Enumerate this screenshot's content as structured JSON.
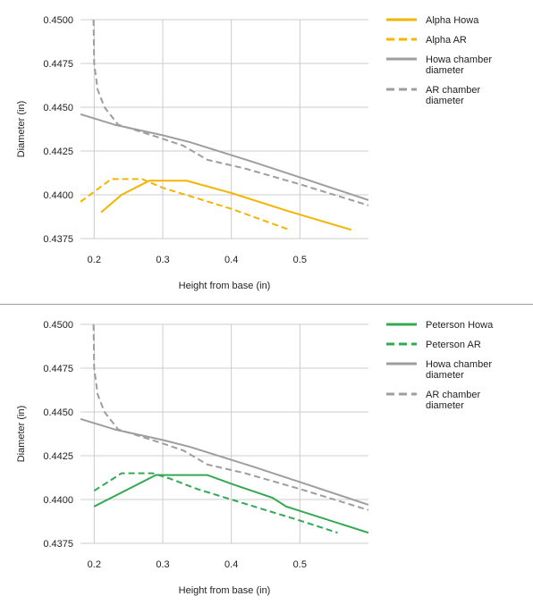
{
  "chart_data": [
    {
      "type": "line",
      "title": "",
      "xlabel": "Height from base (in)",
      "ylabel": "Diameter (in)",
      "xlim": [
        0.18,
        0.6
      ],
      "ylim": [
        0.4375,
        0.45
      ],
      "xticks": [
        "0.2",
        "0.3",
        "0.4",
        "0.5"
      ],
      "yticks": [
        "0.4375",
        "0.4400",
        "0.4425",
        "0.4450",
        "0.4475",
        "0.4500"
      ],
      "grid": true,
      "legend_position": "right",
      "series": [
        {
          "name": "Alpha Howa",
          "color": "#f4b400",
          "dash": "solid",
          "points": [
            [
              0.21,
              0.439
            ],
            [
              0.24,
              0.44
            ],
            [
              0.28,
              0.4408
            ],
            [
              0.335,
              0.4408
            ],
            [
              0.4,
              0.4401
            ],
            [
              0.48,
              0.4391
            ],
            [
              0.575,
              0.438
            ]
          ]
        },
        {
          "name": "Alpha AR",
          "color": "#f4b400",
          "dash": "dashed",
          "points": [
            [
              0.18,
              0.4396
            ],
            [
              0.225,
              0.4409
            ],
            [
              0.27,
              0.4409
            ],
            [
              0.3,
              0.4404
            ],
            [
              0.35,
              0.4398
            ],
            [
              0.4,
              0.4392
            ],
            [
              0.485,
              0.438
            ]
          ]
        },
        {
          "name": "Howa chamber diameter",
          "color": "#9e9e9e",
          "dash": "solid",
          "points": [
            [
              0.18,
              0.4446
            ],
            [
              0.23,
              0.444
            ],
            [
              0.3,
              0.4434
            ],
            [
              0.34,
              0.443
            ],
            [
              0.43,
              0.4419
            ],
            [
              0.5,
              0.441
            ],
            [
              0.6,
              0.4397
            ]
          ]
        },
        {
          "name": "AR chamber diameter",
          "color": "#9e9e9e",
          "dash": "dashed",
          "points": [
            [
              0.199,
              0.45
            ],
            [
              0.2,
              0.4475
            ],
            [
              0.205,
              0.446
            ],
            [
              0.215,
              0.445
            ],
            [
              0.235,
              0.444
            ],
            [
              0.26,
              0.4437
            ],
            [
              0.3,
              0.4432
            ],
            [
              0.33,
              0.4428
            ],
            [
              0.365,
              0.442
            ],
            [
              0.42,
              0.4415
            ],
            [
              0.5,
              0.4406
            ],
            [
              0.6,
              0.4394
            ]
          ]
        }
      ]
    },
    {
      "type": "line",
      "title": "",
      "xlabel": "Height from base (in)",
      "ylabel": "Diameter (in)",
      "xlim": [
        0.18,
        0.6
      ],
      "ylim": [
        0.4375,
        0.45
      ],
      "xticks": [
        "0.2",
        "0.3",
        "0.4",
        "0.5"
      ],
      "yticks": [
        "0.4375",
        "0.4400",
        "0.4425",
        "0.4450",
        "0.4475",
        "0.4500"
      ],
      "grid": true,
      "legend_position": "right",
      "series": [
        {
          "name": "Peterson Howa",
          "color": "#34a853",
          "dash": "solid",
          "points": [
            [
              0.2,
              0.4396
            ],
            [
              0.225,
              0.4401
            ],
            [
              0.29,
              0.4414
            ],
            [
              0.365,
              0.4414
            ],
            [
              0.4,
              0.4409
            ],
            [
              0.46,
              0.4401
            ],
            [
              0.48,
              0.4396
            ],
            [
              0.6,
              0.4381
            ]
          ]
        },
        {
          "name": "Peterson AR",
          "color": "#34a853",
          "dash": "dashed",
          "points": [
            [
              0.2,
              0.4405
            ],
            [
              0.24,
              0.4415
            ],
            [
              0.285,
              0.4415
            ],
            [
              0.31,
              0.4412
            ],
            [
              0.35,
              0.4406
            ],
            [
              0.4,
              0.44
            ],
            [
              0.45,
              0.4394
            ],
            [
              0.5,
              0.4388
            ],
            [
              0.555,
              0.4381
            ]
          ]
        },
        {
          "name": "Howa chamber diameter",
          "color": "#9e9e9e",
          "dash": "solid",
          "points": [
            [
              0.18,
              0.4446
            ],
            [
              0.23,
              0.444
            ],
            [
              0.3,
              0.4434
            ],
            [
              0.34,
              0.443
            ],
            [
              0.43,
              0.4419
            ],
            [
              0.5,
              0.441
            ],
            [
              0.6,
              0.4397
            ]
          ]
        },
        {
          "name": "AR chamber diameter",
          "color": "#9e9e9e",
          "dash": "dashed",
          "points": [
            [
              0.199,
              0.45
            ],
            [
              0.2,
              0.4475
            ],
            [
              0.205,
              0.446
            ],
            [
              0.215,
              0.445
            ],
            [
              0.235,
              0.444
            ],
            [
              0.26,
              0.4437
            ],
            [
              0.3,
              0.4432
            ],
            [
              0.33,
              0.4428
            ],
            [
              0.365,
              0.442
            ],
            [
              0.42,
              0.4415
            ],
            [
              0.5,
              0.4406
            ],
            [
              0.6,
              0.4394
            ]
          ]
        }
      ]
    }
  ],
  "legends": [
    [
      {
        "lines": [
          "Alpha Howa"
        ]
      },
      {
        "lines": [
          "Alpha AR"
        ]
      },
      {
        "lines": [
          "Howa chamber",
          "diameter"
        ]
      },
      {
        "lines": [
          "AR chamber",
          "diameter"
        ]
      }
    ],
    [
      {
        "lines": [
          "Peterson Howa"
        ]
      },
      {
        "lines": [
          "Peterson AR"
        ]
      },
      {
        "lines": [
          "Howa chamber",
          "diameter"
        ]
      },
      {
        "lines": [
          "AR chamber",
          "diameter"
        ]
      }
    ]
  ]
}
